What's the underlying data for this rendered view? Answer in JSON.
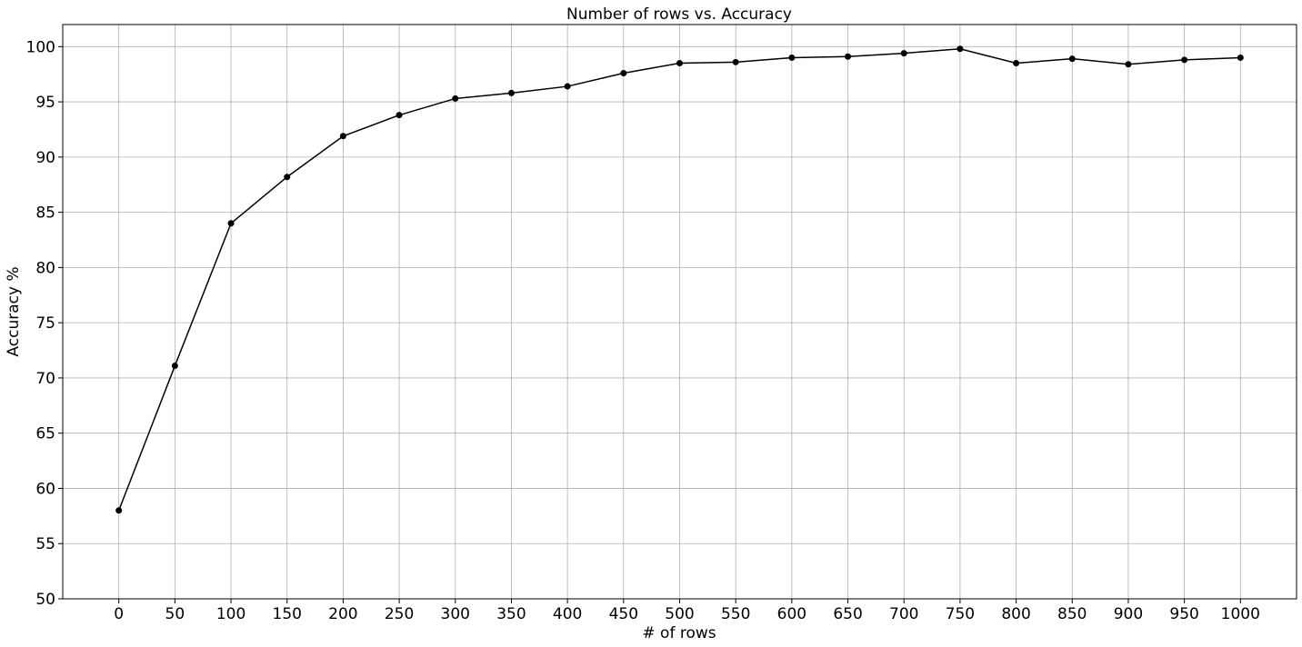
{
  "chart_data": {
    "type": "line",
    "title": "Number of rows vs. Accuracy",
    "xlabel": "# of rows",
    "ylabel": "Accuracy %",
    "xlim": [
      -50,
      1050
    ],
    "ylim": [
      50,
      102
    ],
    "xticks": [
      0,
      50,
      100,
      150,
      200,
      250,
      300,
      350,
      400,
      450,
      500,
      550,
      600,
      650,
      700,
      750,
      800,
      850,
      900,
      950,
      1000
    ],
    "yticks": [
      50,
      55,
      60,
      65,
      70,
      75,
      80,
      85,
      90,
      95,
      100
    ],
    "grid": true,
    "series": [
      {
        "color": "#000000",
        "marker": "circle",
        "x": [
          0,
          50,
          100,
          150,
          200,
          250,
          300,
          350,
          400,
          450,
          500,
          550,
          600,
          650,
          700,
          750,
          800,
          850,
          900,
          950,
          1000
        ],
        "y": [
          58.0,
          71.1,
          84.0,
          88.2,
          91.9,
          93.8,
          95.3,
          95.8,
          96.4,
          97.6,
          98.5,
          98.6,
          99.0,
          99.1,
          99.4,
          99.8,
          98.5,
          98.9,
          98.4,
          98.8,
          99.0
        ]
      }
    ]
  }
}
